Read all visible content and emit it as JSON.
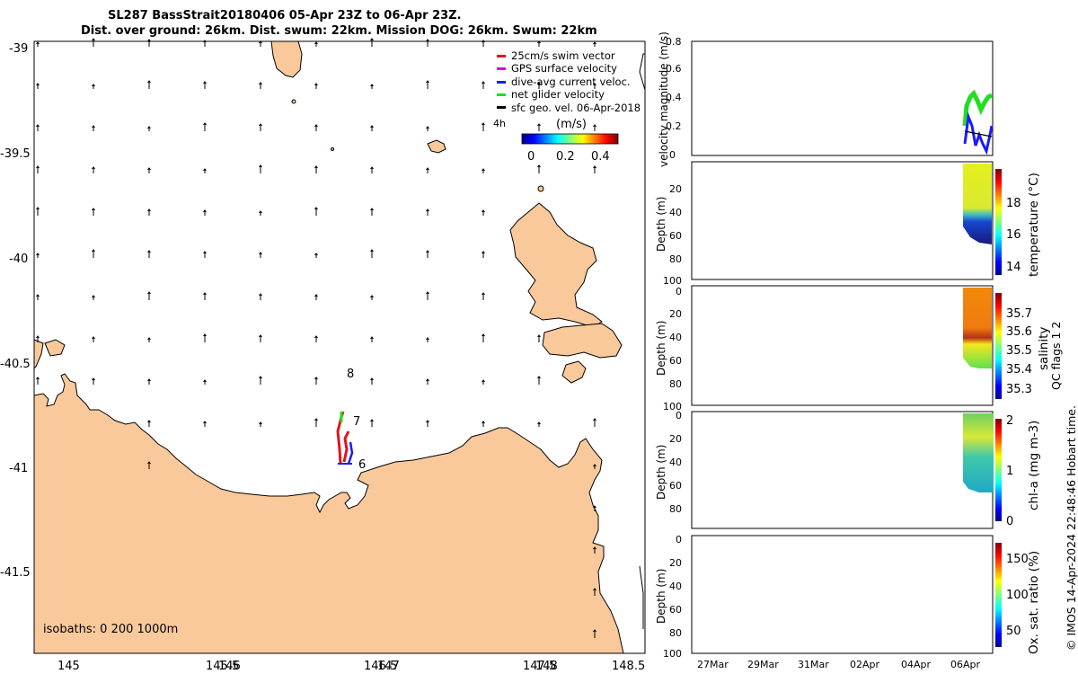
{
  "title": {
    "line1": "SL287 BassStrait20180406 05-Apr 23Z to 06-Apr 23Z.",
    "line2": "Dist. over ground: 26km. Dist. swum: 22km. Mission DOG: 26km. Swum: 22km"
  },
  "map": {
    "x_ticks": [
      "145",
      "145.5",
      "146",
      "146.5",
      "147",
      "147.5",
      "148",
      "148.5"
    ],
    "y_ticks": [
      "-39",
      "-39.5",
      "-40",
      "-40.5",
      "-41",
      "-41.5"
    ],
    "isobaths_label": "isobaths: 0   200  1000m",
    "track_hour_labels": [
      "8",
      "7",
      "6"
    ],
    "vector_time_label": "4h",
    "colorbar": {
      "title": "(m/s)",
      "ticks": [
        "0",
        "0.2",
        "0.4"
      ]
    },
    "colors": {
      "land": "#f9c99b",
      "ocean": "#ffffff",
      "coast": "#000000"
    }
  },
  "legend": [
    {
      "label": "25cm/s swim vector",
      "color": "#e0141e"
    },
    {
      "label": "GPS surface velocity",
      "color": "#e000e0"
    },
    {
      "label": "dive-avg current veloc.",
      "color": "#1a1aff"
    },
    {
      "label": "net glider velocity",
      "color": "#22dd22"
    },
    {
      "label": "sfc geo. vel. 06-Apr-2018",
      "color": "#000000"
    }
  ],
  "panels": {
    "velocity": {
      "ylabel": "velocity magnitude (m/s)",
      "ticks": [
        "0",
        "0.2",
        "0.4",
        "0.6",
        "0.8"
      ]
    },
    "temperature": {
      "ylabel": "Depth (m)",
      "cbar_label": "temperature (°C)",
      "ticks": [
        "20",
        "40",
        "60",
        "80",
        "100"
      ],
      "cbar_ticks": [
        "14",
        "16",
        "18"
      ]
    },
    "salinity": {
      "ylabel": "Depth (m)",
      "cbar_label": "salinity",
      "ticks": [
        "0",
        "20",
        "40",
        "60",
        "80",
        "100"
      ],
      "cbar_ticks": [
        "35.3",
        "35.4",
        "35.5",
        "35.6",
        "35.7"
      ]
    },
    "chla": {
      "ylabel": "Depth (m)",
      "cbar_label": "chl-a (mg m-3)",
      "ticks": [
        "0",
        "20",
        "40",
        "60",
        "80"
      ],
      "cbar_ticks": [
        "0",
        "1",
        "2"
      ]
    },
    "oxygen": {
      "ylabel": "Depth (m)",
      "cbar_label": "Ox. sat. ratio (%)",
      "ticks": [
        "0",
        "20",
        "40",
        "60",
        "80",
        "100"
      ],
      "cbar_ticks": [
        "50",
        "100",
        "150"
      ]
    },
    "time_ticks": [
      "27Mar",
      "29Mar",
      "31Mar",
      "02Apr",
      "04Apr",
      "06Apr"
    ],
    "qc_label": "QC flags 1  2"
  },
  "credit": "© IMOS 14-Apr-2024 22:48:46 Hobart time."
}
